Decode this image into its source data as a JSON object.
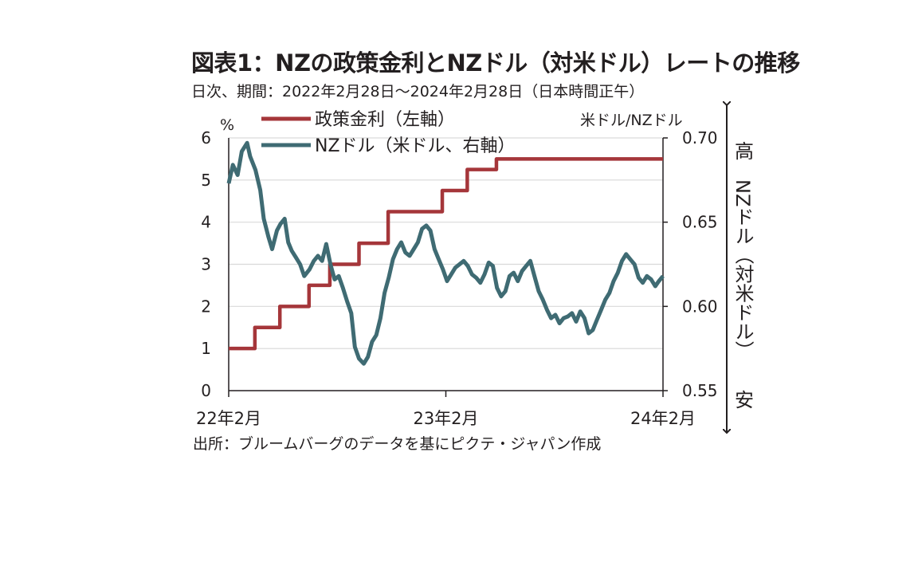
{
  "title": "図表1：NZの政策金利とNZドル（対米ドル）レートの推移",
  "subtitle": "日次、期間：2022年2月28日～2024年2月28日（日本時間正午）",
  "source": "出所：ブルームバーグのデータを基にピクテ・ジャパン作成",
  "left_unit": "%",
  "right_unit": "米ドル/NZドル",
  "high_label": "高",
  "low_label": "安",
  "right_axis_title": "NZドル（対米ドル）",
  "colors": {
    "policy_rate": "#a5363a",
    "nzd": "#3f6b73",
    "grid": "#d9d9d9",
    "axis": "#231f20"
  },
  "chart_data": {
    "type": "line",
    "x_tick_labels": [
      "22年2月",
      "23年2月",
      "24年2月"
    ],
    "x_ticks": [
      "2022-02-28",
      "2023-02-28",
      "2024-02-28"
    ],
    "x_range": [
      "2022-02-28",
      "2024-02-28"
    ],
    "y_left": {
      "range": [
        0,
        6
      ],
      "ticks": [
        "0",
        "1",
        "2",
        "3",
        "4",
        "5",
        "6"
      ]
    },
    "y_right": {
      "range": [
        0.55,
        0.7
      ],
      "ticks": [
        "0.55",
        "0.60",
        "0.65",
        "0.70"
      ]
    },
    "grid": "horizontal",
    "legend_position": "top",
    "series": [
      {
        "name": "政策金利（左軸）",
        "axis": "left",
        "step": true,
        "x": [
          "2022-02-28",
          "2022-04-13",
          "2022-05-25",
          "2022-07-13",
          "2022-08-17",
          "2022-10-05",
          "2022-11-23",
          "2023-02-22",
          "2023-04-05",
          "2023-05-24",
          "2024-02-28"
        ],
        "y": [
          1.0,
          1.5,
          2.0,
          2.5,
          3.0,
          3.5,
          4.25,
          4.75,
          5.25,
          5.5,
          5.5
        ]
      },
      {
        "name": "NZドル（米ドル、右軸）",
        "axis": "right",
        "x": [
          "2022-02-28",
          "2022-03-07",
          "2022-03-15",
          "2022-03-22",
          "2022-03-31",
          "2022-04-05",
          "2022-04-14",
          "2022-04-22",
          "2022-04-28",
          "2022-05-06",
          "2022-05-12",
          "2022-05-20",
          "2022-05-26",
          "2022-06-02",
          "2022-06-08",
          "2022-06-14",
          "2022-06-21",
          "2022-06-28",
          "2022-07-05",
          "2022-07-14",
          "2022-07-21",
          "2022-07-28",
          "2022-08-04",
          "2022-08-11",
          "2022-08-18",
          "2022-08-25",
          "2022-09-01",
          "2022-09-08",
          "2022-09-15",
          "2022-09-22",
          "2022-09-28",
          "2022-10-05",
          "2022-10-13",
          "2022-10-20",
          "2022-10-27",
          "2022-11-03",
          "2022-11-10",
          "2022-11-17",
          "2022-11-24",
          "2022-12-01",
          "2022-12-08",
          "2022-12-15",
          "2022-12-22",
          "2022-12-29",
          "2023-01-05",
          "2023-01-12",
          "2023-01-19",
          "2023-01-26",
          "2023-02-02",
          "2023-02-09",
          "2023-02-16",
          "2023-02-23",
          "2023-03-02",
          "2023-03-09",
          "2023-03-16",
          "2023-03-23",
          "2023-03-30",
          "2023-04-06",
          "2023-04-13",
          "2023-04-20",
          "2023-04-27",
          "2023-05-04",
          "2023-05-11",
          "2023-05-18",
          "2023-05-25",
          "2023-06-01",
          "2023-06-08",
          "2023-06-15",
          "2023-06-22",
          "2023-06-29",
          "2023-07-06",
          "2023-07-13",
          "2023-07-20",
          "2023-07-27",
          "2023-08-03",
          "2023-08-10",
          "2023-08-17",
          "2023-08-24",
          "2023-08-31",
          "2023-09-07",
          "2023-09-14",
          "2023-09-21",
          "2023-09-28",
          "2023-10-05",
          "2023-10-12",
          "2023-10-19",
          "2023-10-26",
          "2023-11-02",
          "2023-11-09",
          "2023-11-16",
          "2023-11-23",
          "2023-11-30",
          "2023-12-07",
          "2023-12-14",
          "2023-12-21",
          "2023-12-28",
          "2024-01-04",
          "2024-01-11",
          "2024-01-18",
          "2024-01-25",
          "2024-02-01",
          "2024-02-08",
          "2024-02-15",
          "2024-02-21",
          "2024-02-28"
        ],
        "y": [
          0.673,
          0.684,
          0.678,
          0.692,
          0.697,
          0.689,
          0.681,
          0.669,
          0.652,
          0.641,
          0.634,
          0.645,
          0.649,
          0.652,
          0.638,
          0.633,
          0.629,
          0.625,
          0.618,
          0.622,
          0.627,
          0.63,
          0.627,
          0.637,
          0.625,
          0.616,
          0.618,
          0.611,
          0.603,
          0.596,
          0.576,
          0.569,
          0.566,
          0.57,
          0.579,
          0.583,
          0.593,
          0.608,
          0.617,
          0.628,
          0.634,
          0.638,
          0.632,
          0.63,
          0.634,
          0.638,
          0.646,
          0.648,
          0.645,
          0.634,
          0.628,
          0.622,
          0.615,
          0.619,
          0.623,
          0.625,
          0.627,
          0.624,
          0.619,
          0.617,
          0.614,
          0.619,
          0.626,
          0.624,
          0.611,
          0.606,
          0.609,
          0.618,
          0.62,
          0.615,
          0.621,
          0.624,
          0.627,
          0.618,
          0.609,
          0.604,
          0.598,
          0.593,
          0.595,
          0.59,
          0.593,
          0.594,
          0.596,
          0.591,
          0.597,
          0.593,
          0.584,
          0.586,
          0.592,
          0.598,
          0.604,
          0.608,
          0.615,
          0.62,
          0.627,
          0.631,
          0.628,
          0.625,
          0.617,
          0.614,
          0.618,
          0.616,
          0.612,
          0.615,
          0.618
        ]
      }
    ]
  }
}
